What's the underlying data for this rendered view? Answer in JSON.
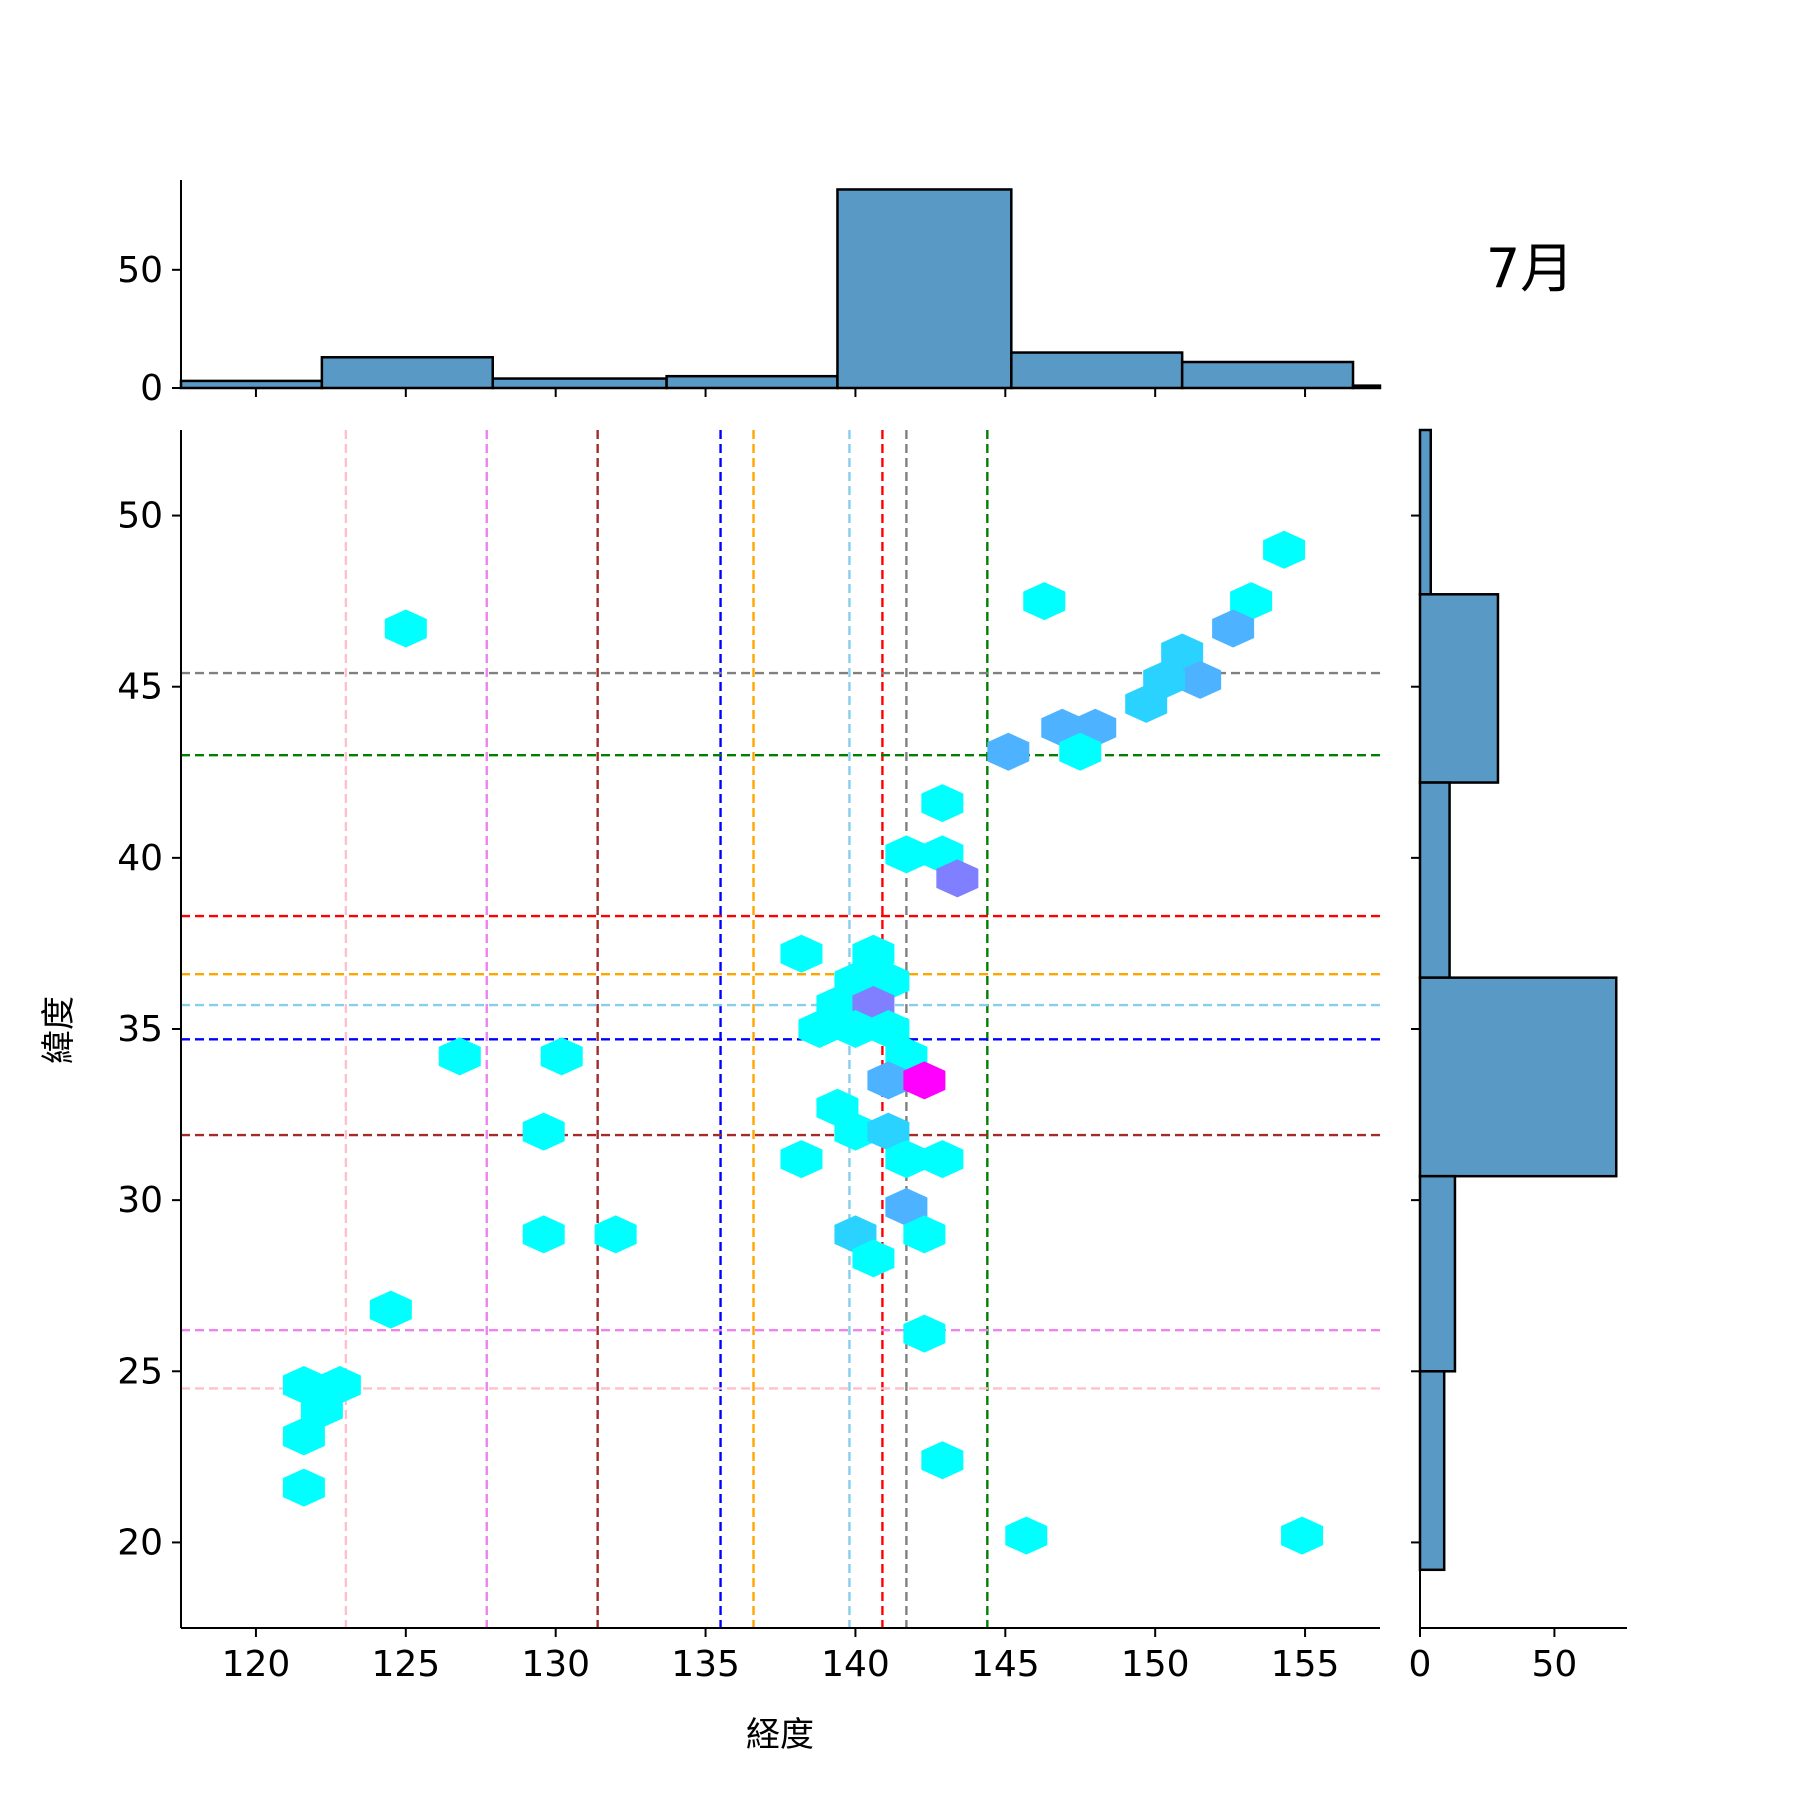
{
  "chart_data": {
    "type": "hexbin",
    "title": "7月",
    "xlabel": "経度",
    "ylabel": "緯度",
    "xlim": [
      117.5,
      157.5
    ],
    "ylim": [
      17.5,
      52.5
    ],
    "xticks": [
      120,
      125,
      130,
      135,
      140,
      145,
      150,
      155
    ],
    "yticks": [
      20,
      25,
      30,
      35,
      40,
      45,
      50
    ],
    "points": [
      {
        "x": 125.0,
        "y": 46.7,
        "count": 1
      },
      {
        "x": 146.3,
        "y": 47.5,
        "count": 1
      },
      {
        "x": 154.3,
        "y": 49.0,
        "count": 1
      },
      {
        "x": 153.2,
        "y": 47.5,
        "count": 1
      },
      {
        "x": 152.6,
        "y": 46.7,
        "count": 3
      },
      {
        "x": 150.9,
        "y": 46.0,
        "count": 2
      },
      {
        "x": 151.5,
        "y": 45.2,
        "count": 3
      },
      {
        "x": 150.3,
        "y": 45.2,
        "count": 2
      },
      {
        "x": 149.7,
        "y": 44.5,
        "count": 2
      },
      {
        "x": 148.0,
        "y": 43.8,
        "count": 3
      },
      {
        "x": 146.9,
        "y": 43.8,
        "count": 3
      },
      {
        "x": 145.1,
        "y": 43.1,
        "count": 3
      },
      {
        "x": 147.5,
        "y": 43.1,
        "count": 1
      },
      {
        "x": 142.9,
        "y": 41.6,
        "count": 1
      },
      {
        "x": 141.7,
        "y": 40.1,
        "count": 1
      },
      {
        "x": 142.9,
        "y": 40.1,
        "count": 1
      },
      {
        "x": 143.4,
        "y": 39.4,
        "count": 5
      },
      {
        "x": 138.2,
        "y": 37.2,
        "count": 1
      },
      {
        "x": 140.6,
        "y": 37.2,
        "count": 1
      },
      {
        "x": 140.0,
        "y": 36.4,
        "count": 1
      },
      {
        "x": 141.1,
        "y": 36.4,
        "count": 1
      },
      {
        "x": 139.4,
        "y": 35.7,
        "count": 1
      },
      {
        "x": 140.6,
        "y": 35.7,
        "count": 6
      },
      {
        "x": 138.8,
        "y": 35.0,
        "count": 1
      },
      {
        "x": 140.0,
        "y": 35.0,
        "count": 1
      },
      {
        "x": 141.1,
        "y": 35.0,
        "count": 1
      },
      {
        "x": 141.7,
        "y": 34.2,
        "count": 1
      },
      {
        "x": 126.8,
        "y": 34.2,
        "count": 1
      },
      {
        "x": 130.2,
        "y": 34.2,
        "count": 1
      },
      {
        "x": 141.1,
        "y": 33.5,
        "count": 3
      },
      {
        "x": 142.3,
        "y": 33.5,
        "count": 12
      },
      {
        "x": 139.4,
        "y": 32.7,
        "count": 1
      },
      {
        "x": 140.0,
        "y": 32.0,
        "count": 1
      },
      {
        "x": 141.1,
        "y": 32.0,
        "count": 2
      },
      {
        "x": 129.6,
        "y": 32.0,
        "count": 1
      },
      {
        "x": 138.2,
        "y": 31.2,
        "count": 1
      },
      {
        "x": 141.7,
        "y": 31.2,
        "count": 1
      },
      {
        "x": 142.9,
        "y": 31.2,
        "count": 1
      },
      {
        "x": 141.7,
        "y": 29.8,
        "count": 3
      },
      {
        "x": 129.6,
        "y": 29.0,
        "count": 1
      },
      {
        "x": 132.0,
        "y": 29.0,
        "count": 1
      },
      {
        "x": 140.0,
        "y": 29.0,
        "count": 2
      },
      {
        "x": 142.3,
        "y": 29.0,
        "count": 1
      },
      {
        "x": 140.6,
        "y": 28.3,
        "count": 1
      },
      {
        "x": 124.5,
        "y": 26.8,
        "count": 1
      },
      {
        "x": 142.3,
        "y": 26.1,
        "count": 1
      },
      {
        "x": 121.6,
        "y": 24.6,
        "count": 1
      },
      {
        "x": 122.8,
        "y": 24.6,
        "count": 1
      },
      {
        "x": 122.2,
        "y": 23.9,
        "count": 1
      },
      {
        "x": 121.6,
        "y": 23.1,
        "count": 1
      },
      {
        "x": 142.9,
        "y": 22.4,
        "count": 1
      },
      {
        "x": 121.6,
        "y": 21.6,
        "count": 1
      },
      {
        "x": 145.7,
        "y": 20.2,
        "count": 1
      },
      {
        "x": 154.9,
        "y": 20.2,
        "count": 1
      }
    ],
    "colors": {
      "low": "#00ffff",
      "mid": "#4db2ff",
      "high": "#7f7fff",
      "peak": "#ff00ff",
      "hist_fill": "#5899c5",
      "hist_edge": "#000000"
    },
    "vlines": [
      {
        "x": 123.0,
        "color": "pink"
      },
      {
        "x": 127.7,
        "color": "violet"
      },
      {
        "x": 131.4,
        "color": "brown"
      },
      {
        "x": 135.5,
        "color": "blue"
      },
      {
        "x": 136.6,
        "color": "orange"
      },
      {
        "x": 139.8,
        "color": "skyblue"
      },
      {
        "x": 140.9,
        "color": "red"
      },
      {
        "x": 141.7,
        "color": "gray"
      },
      {
        "x": 144.4,
        "color": "green"
      }
    ],
    "hlines": [
      {
        "y": 45.4,
        "color": "gray"
      },
      {
        "y": 43.0,
        "color": "green"
      },
      {
        "y": 38.3,
        "color": "red"
      },
      {
        "y": 36.6,
        "color": "orange"
      },
      {
        "y": 35.7,
        "color": "skyblue"
      },
      {
        "y": 34.7,
        "color": "blue"
      },
      {
        "y": 31.9,
        "color": "brown"
      },
      {
        "y": 26.2,
        "color": "violet"
      },
      {
        "y": 24.5,
        "color": "pink"
      }
    ],
    "top_hist": {
      "yticks": [
        0,
        50
      ],
      "ylim": [
        0,
        88
      ],
      "bins": [
        {
          "x0": 117.5,
          "x1": 122.2,
          "count": 3
        },
        {
          "x0": 122.2,
          "x1": 127.9,
          "count": 13
        },
        {
          "x0": 127.9,
          "x1": 133.7,
          "count": 4
        },
        {
          "x0": 133.7,
          "x1": 139.4,
          "count": 5
        },
        {
          "x0": 139.4,
          "x1": 145.2,
          "count": 84
        },
        {
          "x0": 145.2,
          "x1": 150.9,
          "count": 15
        },
        {
          "x0": 150.9,
          "x1": 156.6,
          "count": 11
        },
        {
          "x0": 156.6,
          "x1": 157.5,
          "count": 1
        }
      ]
    },
    "right_hist": {
      "xticks": [
        0,
        50
      ],
      "xlim": [
        0,
        77
      ],
      "bins": [
        {
          "y0": 47.7,
          "y1": 52.5,
          "count": 4
        },
        {
          "y0": 42.2,
          "y1": 47.7,
          "count": 29
        },
        {
          "y0": 36.5,
          "y1": 42.2,
          "count": 11
        },
        {
          "y0": 30.7,
          "y1": 36.5,
          "count": 73
        },
        {
          "y0": 25.0,
          "y1": 30.7,
          "count": 13
        },
        {
          "y0": 19.2,
          "y1": 25.0,
          "count": 9
        }
      ]
    }
  }
}
